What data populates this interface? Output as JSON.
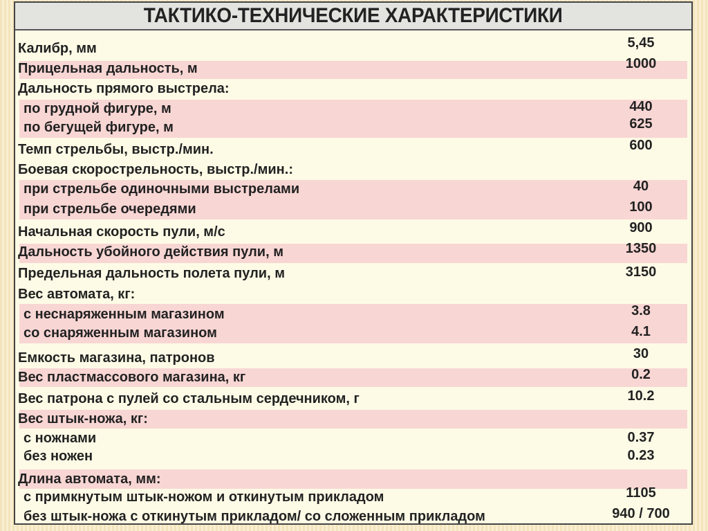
{
  "title": "ТАКТИКО-ТЕХНИЧЕСКИЕ ХАРАКТЕРИСТИКИ",
  "colors": {
    "background": "#fdfbe6",
    "highlight_band": "#f8d6d4",
    "header": "#e3e3e0"
  },
  "rows": [
    {
      "label": "Калибр, мм",
      "value": "5,45"
    },
    {
      "label": "Прицельная дальность, м",
      "value": "1000"
    },
    {
      "label": "Дальность прямого выстрела:",
      "value": ""
    },
    {
      "label": "по грудной фигуре, м",
      "value": "440"
    },
    {
      "label": "по бегущей фигуре, м",
      "value": "625"
    },
    {
      "label": "Темп стрельбы, выстр./мин.",
      "value": "600"
    },
    {
      "label": "Боевая скорострельность, выстр./мин.:",
      "value": ""
    },
    {
      "label": "при стрельбе одиночными выстрелами",
      "value": "40"
    },
    {
      "label": "при стрельбе очередями",
      "value": "100"
    },
    {
      "label": "Начальная скорость пули, м/с",
      "value": "900"
    },
    {
      "label": "Дальность убойного действия пули, м",
      "value": "1350"
    },
    {
      "label": "Предельная дальность полета пули, м",
      "value": "3150"
    },
    {
      "label": "Вес автомата, кг:",
      "value": ""
    },
    {
      "label": "с неснаряженным магазином",
      "value": "3.8"
    },
    {
      "label": "со снаряженным магазином",
      "value": "4.1"
    },
    {
      "label": "Емкость магазина, патронов",
      "value": "30"
    },
    {
      "label": "Вес пластмассового магазина, кг",
      "value": "0.2"
    },
    {
      "label": "Вес патрона с пулей со стальным сердечником, г",
      "value": "10.2"
    },
    {
      "label": "Вес штык-ножа, кг:",
      "value": ""
    },
    {
      "label": "с ножнами",
      "value": "0.37"
    },
    {
      "label": "без ножен",
      "value": "0.23"
    },
    {
      "label": "Длина автомата, мм:",
      "value": ""
    },
    {
      "label": "с примкнутым штык-ножом и откинутым прикладом",
      "value": "1105"
    },
    {
      "label": "без штык-ножа с откинутым прикладом/ со сложенным прикладом",
      "value": "940 / 700"
    }
  ]
}
